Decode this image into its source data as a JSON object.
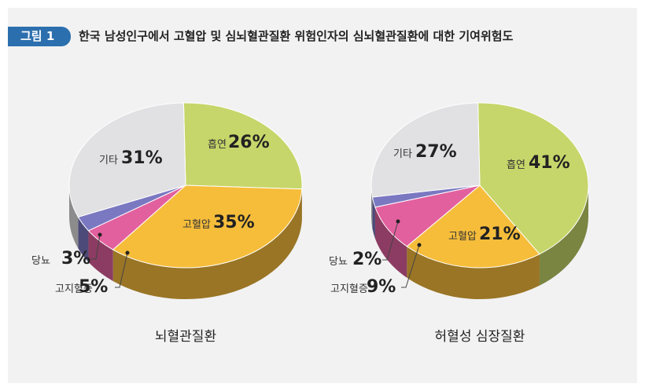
{
  "figure": {
    "badge": "그림 1",
    "title": "한국 남성인구에서 고혈압 및 심뇌혈관질환 위험인자의 심뇌혈관질환에 대한 기여위험도"
  },
  "chart_data": [
    {
      "type": "pie",
      "title": "뇌혈관질환",
      "unit": "%",
      "slices": [
        {
          "label": "흡연",
          "value": 26,
          "color": "#c6d66a"
        },
        {
          "label": "고혈압",
          "value": 35,
          "color": "#f6bd3b"
        },
        {
          "label": "고지혈증",
          "value": 5,
          "color": "#e2609e"
        },
        {
          "label": "당뇨",
          "value": 3,
          "color": "#7b78c2"
        },
        {
          "label": "기타",
          "value": 31,
          "color": "#e1e1e3"
        }
      ]
    },
    {
      "type": "pie",
      "title": "허혈성 심장질환",
      "unit": "%",
      "slices": [
        {
          "label": "흡연",
          "value": 41,
          "color": "#c6d66a"
        },
        {
          "label": "고혈압",
          "value": 21,
          "color": "#f6bd3b"
        },
        {
          "label": "고지혈증",
          "value": 9,
          "color": "#e2609e"
        },
        {
          "label": "당뇨",
          "value": 2,
          "color": "#7b78c2"
        },
        {
          "label": "기타",
          "value": 27,
          "color": "#e1e1e3"
        }
      ]
    }
  ]
}
